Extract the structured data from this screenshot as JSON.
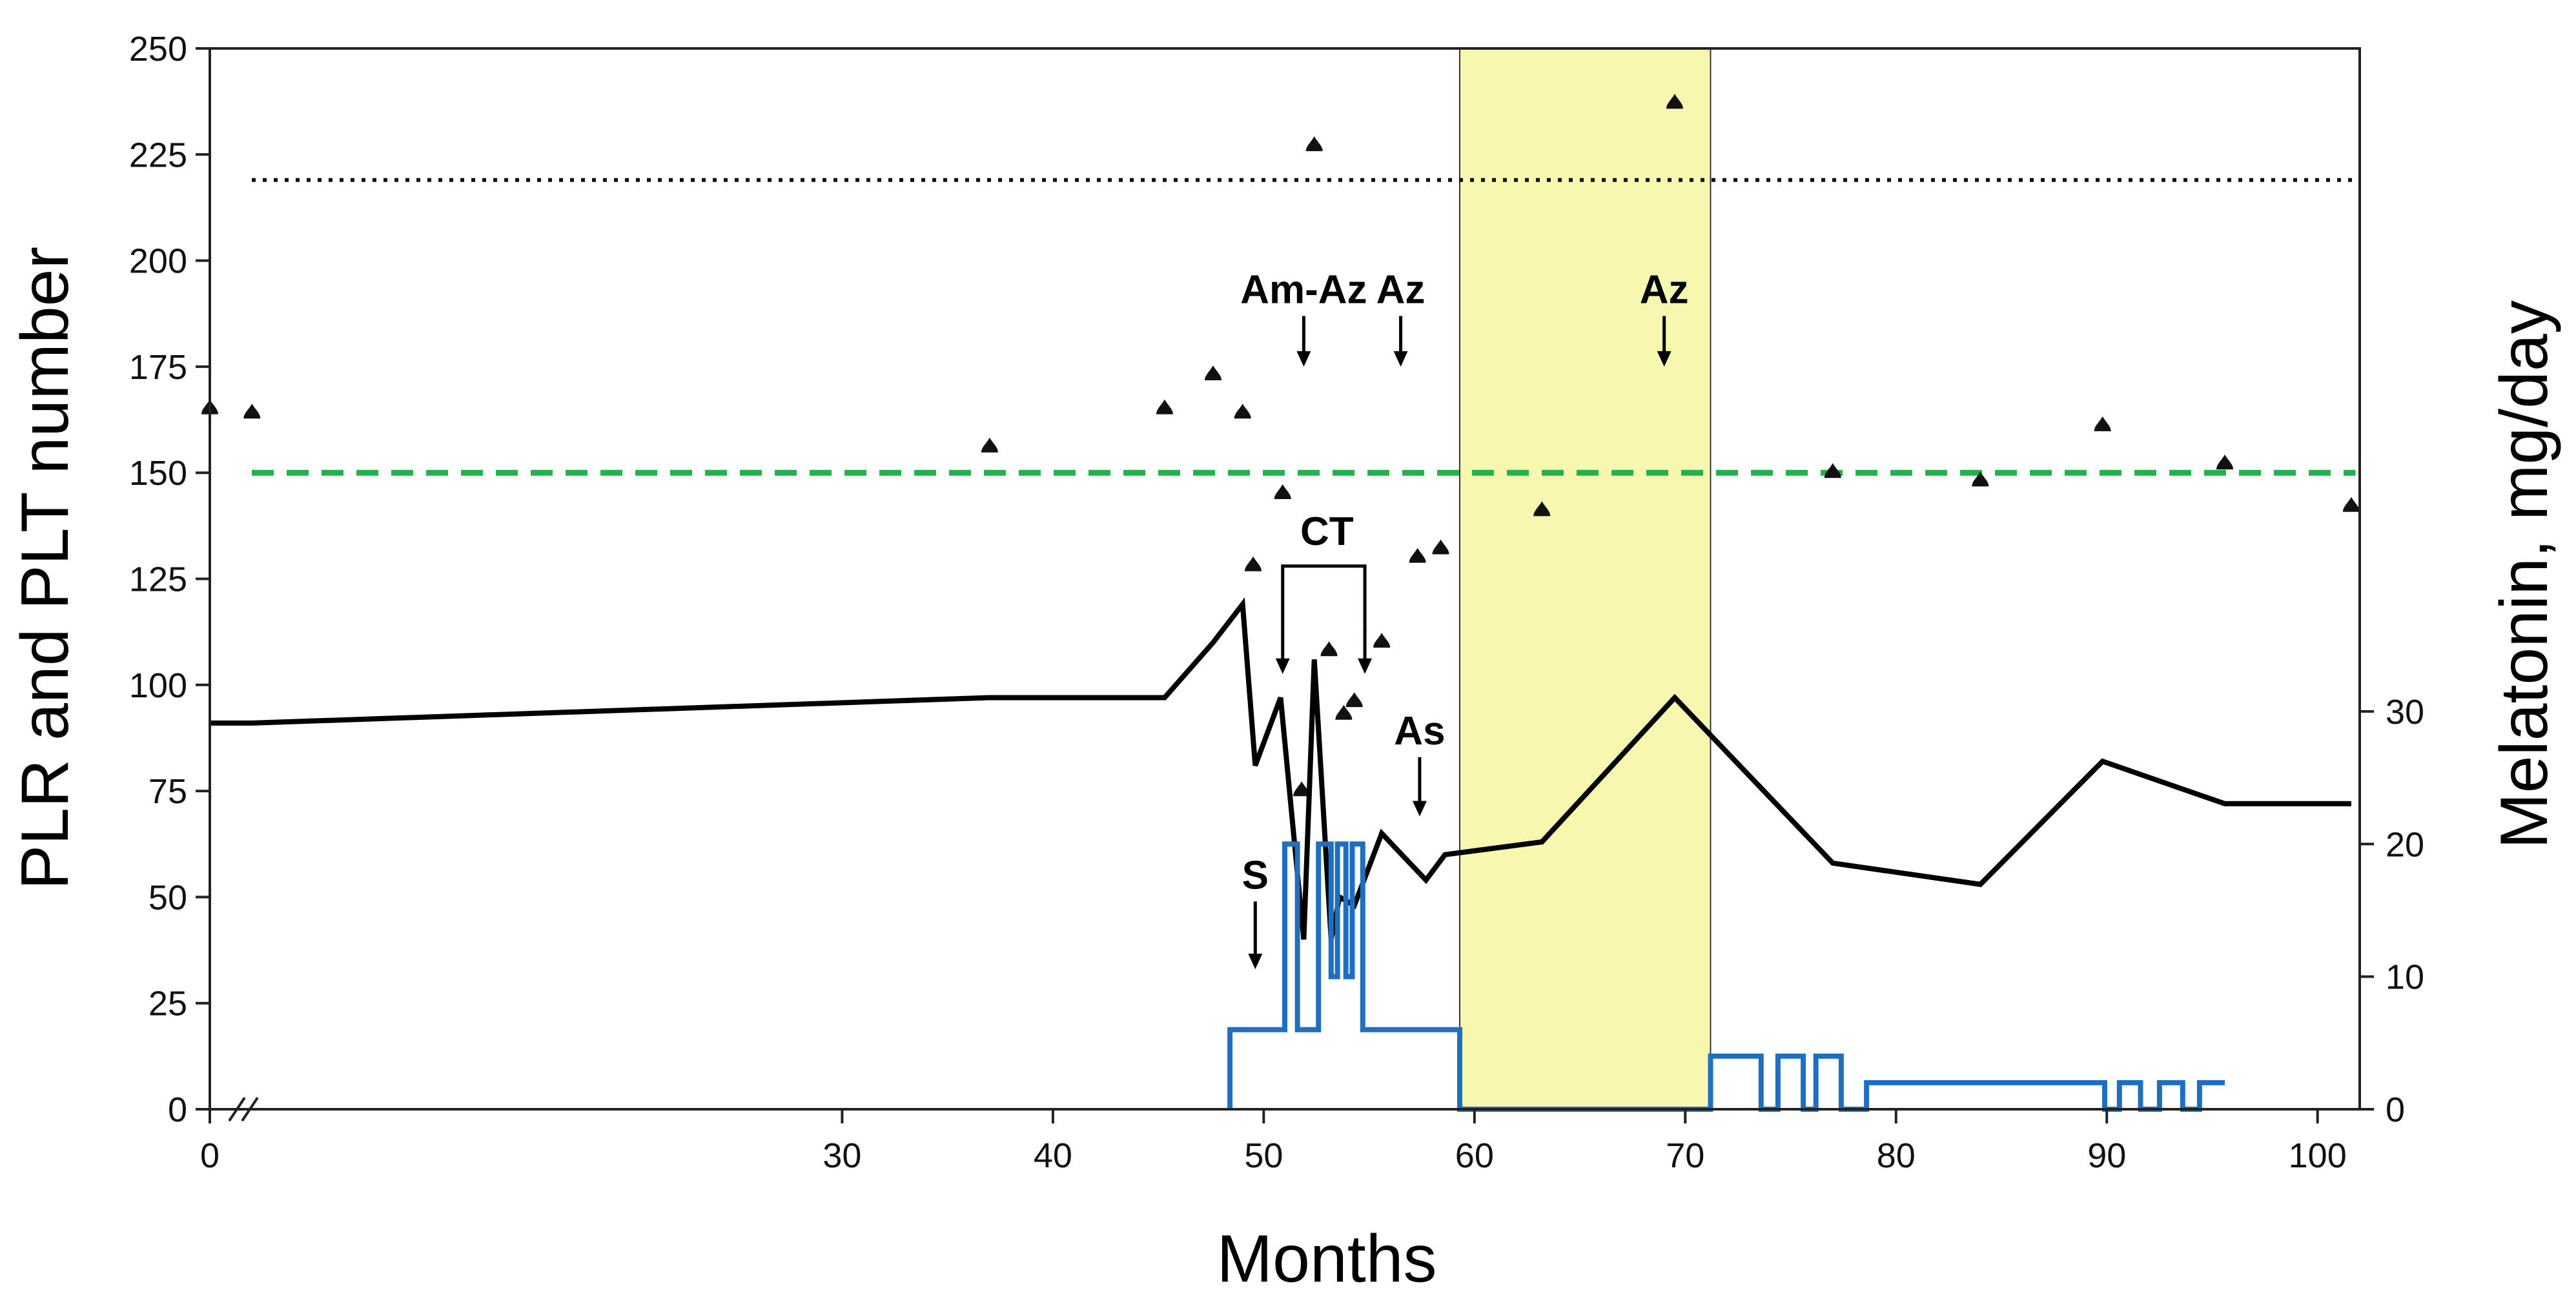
{
  "chart_data": {
    "type": "line",
    "xlabel": "Months",
    "ylabel": "PLR and PLT number",
    "ylabel_right": "Melatonin, mg/day",
    "xlim": [
      0,
      102
    ],
    "ylim": [
      0,
      250
    ],
    "ylim_right": [
      0,
      80
    ],
    "x_ticks": [
      0,
      30,
      40,
      50,
      60,
      70,
      80,
      90,
      100
    ],
    "y_ticks": [
      0,
      25,
      50,
      75,
      100,
      125,
      150,
      175,
      200,
      225,
      250
    ],
    "y_ticks_right": [
      0,
      10,
      20,
      30
    ],
    "axis_break_note": "x axis break between 0 and 30",
    "highlight_region": {
      "x0": 59.3,
      "x1": 71.2,
      "color": "#f7f7b0"
    },
    "reference_lines": [
      {
        "name": "PLT lower normal (dashed)",
        "y": 150,
        "color": "#22b14c",
        "style": "dashed"
      },
      {
        "name": "PLR threshold (dotted)",
        "y": 219,
        "color": "#111111",
        "style": "dotted"
      }
    ],
    "series": [
      {
        "name": "PLR",
        "kind": "markers",
        "color": "#111111",
        "points": [
          [
            0,
            165
          ],
          [
            2,
            164
          ],
          [
            37,
            156
          ],
          [
            45.3,
            165
          ],
          [
            47.6,
            173
          ],
          [
            49,
            164
          ],
          [
            49.5,
            128
          ],
          [
            50.9,
            145
          ],
          [
            51.8,
            75
          ],
          [
            52.4,
            227
          ],
          [
            53.1,
            108
          ],
          [
            53.8,
            93
          ],
          [
            54.3,
            96
          ],
          [
            55.6,
            110
          ],
          [
            57.3,
            130
          ],
          [
            58.4,
            132
          ],
          [
            63.2,
            141
          ],
          [
            69.5,
            237
          ],
          [
            77,
            150
          ],
          [
            84,
            148
          ],
          [
            89.8,
            161
          ],
          [
            95.6,
            152
          ],
          [
            101.6,
            142
          ]
        ]
      },
      {
        "name": "PLT",
        "kind": "line",
        "color": "#000000",
        "points": [
          [
            0,
            91
          ],
          [
            0.5,
            91
          ],
          [
            2,
            91
          ],
          [
            37,
            97
          ],
          [
            45.3,
            97
          ],
          [
            47.6,
            110
          ],
          [
            49,
            119
          ],
          [
            49.6,
            81
          ],
          [
            50.8,
            97
          ],
          [
            51.9,
            40
          ],
          [
            52.4,
            106
          ],
          [
            53.2,
            40
          ],
          [
            53.6,
            50
          ],
          [
            54.3,
            48
          ],
          [
            55.6,
            65
          ],
          [
            57.7,
            54
          ],
          [
            58.6,
            60
          ],
          [
            63.2,
            63
          ],
          [
            69.5,
            97
          ],
          [
            77,
            58
          ],
          [
            84,
            53
          ],
          [
            89.8,
            82
          ],
          [
            95.6,
            72
          ],
          [
            101.6,
            72
          ]
        ]
      },
      {
        "name": "Melatonin, mg/day",
        "kind": "step",
        "axis": "right",
        "color": "#1f6fc1",
        "points": [
          [
            48.4,
            0
          ],
          [
            48.4,
            6
          ],
          [
            51,
            6
          ],
          [
            51,
            20
          ],
          [
            51.6,
            20
          ],
          [
            51.6,
            6
          ],
          [
            52.6,
            6
          ],
          [
            52.6,
            20
          ],
          [
            53.2,
            20
          ],
          [
            53.2,
            10
          ],
          [
            53.5,
            10
          ],
          [
            53.5,
            20
          ],
          [
            53.9,
            20
          ],
          [
            53.9,
            10
          ],
          [
            54.2,
            10
          ],
          [
            54.2,
            20
          ],
          [
            54.7,
            20
          ],
          [
            54.7,
            6
          ],
          [
            59.3,
            6
          ],
          [
            59.3,
            0
          ],
          [
            71.2,
            0
          ],
          [
            71.2,
            4
          ],
          [
            73.6,
            4
          ],
          [
            73.6,
            0
          ],
          [
            74.4,
            0
          ],
          [
            74.4,
            4
          ],
          [
            75.6,
            4
          ],
          [
            75.6,
            0
          ],
          [
            76.2,
            0
          ],
          [
            76.2,
            4
          ],
          [
            77.4,
            4
          ],
          [
            77.4,
            0
          ],
          [
            78.6,
            0
          ],
          [
            78.6,
            2
          ],
          [
            89.9,
            2
          ],
          [
            89.9,
            0
          ],
          [
            90.6,
            0
          ],
          [
            90.6,
            2
          ],
          [
            91.6,
            2
          ],
          [
            91.6,
            0
          ],
          [
            92.5,
            0
          ],
          [
            92.5,
            2
          ],
          [
            93.6,
            2
          ],
          [
            93.6,
            0
          ],
          [
            94.4,
            0
          ],
          [
            94.4,
            2
          ],
          [
            95.6,
            2
          ]
        ]
      }
    ],
    "annotations": [
      {
        "label": "Am-Az",
        "x": 51.9,
        "y": 190,
        "arrow_to": 175
      },
      {
        "label": "Az",
        "x": 56.5,
        "y": 190,
        "arrow_to": 175
      },
      {
        "label": "Az",
        "x": 69,
        "y": 190,
        "arrow_to": 175
      },
      {
        "label": "CT",
        "x": 53,
        "y": 133
      },
      {
        "label": "As",
        "x": 57.4,
        "y": 86,
        "arrow_to": 69
      },
      {
        "label": "S",
        "x": 49.6,
        "y": 52,
        "arrow_to": 33
      }
    ],
    "ct_bracket": {
      "x0": 50.9,
      "x1": 54.8,
      "y_top": 128,
      "y_bottom": 114
    }
  }
}
